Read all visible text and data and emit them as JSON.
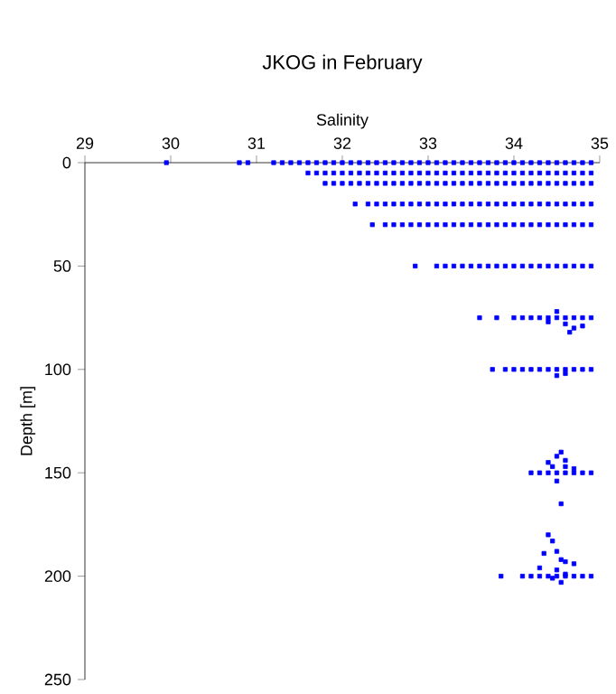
{
  "chart_data": {
    "type": "scatter",
    "title": "JKOG in February",
    "xlabel": "Salinity",
    "ylabel": "Depth [m]",
    "xlim": [
      29,
      35
    ],
    "xticks": [
      29,
      30,
      31,
      32,
      33,
      34,
      35
    ],
    "ylim": [
      250,
      0
    ],
    "yticks": [
      0,
      50,
      100,
      150,
      200,
      250
    ],
    "grid": false,
    "marker": "square",
    "series": [
      {
        "color": "#0000ff",
        "x": [
          29.95,
          30.8,
          30.9,
          31.2,
          31.3,
          31.4,
          31.5,
          31.6,
          31.7,
          31.8,
          31.9,
          32.0,
          32.1,
          32.2,
          32.3,
          32.4,
          32.5,
          32.6,
          32.7,
          32.8,
          32.9,
          33.0,
          33.1,
          33.2,
          33.3,
          33.4,
          33.5,
          33.6,
          33.7,
          33.8,
          33.9,
          34.0,
          34.1,
          34.2,
          34.3,
          34.4,
          34.5,
          34.6,
          34.7,
          34.8,
          34.9,
          31.6,
          31.7,
          31.8,
          31.9,
          32.0,
          32.1,
          32.2,
          32.3,
          32.4,
          32.5,
          32.6,
          32.7,
          32.8,
          32.9,
          33.0,
          33.1,
          33.2,
          33.3,
          33.4,
          33.5,
          33.6,
          33.7,
          33.8,
          33.9,
          34.0,
          34.1,
          34.2,
          34.3,
          34.4,
          34.5,
          34.6,
          34.7,
          34.8,
          34.9,
          31.8,
          31.9,
          32.0,
          32.1,
          32.2,
          32.3,
          32.4,
          32.5,
          32.6,
          32.7,
          32.8,
          32.9,
          33.0,
          33.1,
          33.2,
          33.3,
          33.4,
          33.5,
          33.6,
          33.7,
          33.8,
          33.9,
          34.0,
          34.1,
          34.2,
          34.3,
          34.4,
          34.5,
          34.6,
          34.7,
          34.8,
          34.9,
          32.15,
          32.3,
          32.4,
          32.5,
          32.6,
          32.7,
          32.8,
          32.9,
          33.0,
          33.1,
          33.2,
          33.3,
          33.4,
          33.5,
          33.6,
          33.7,
          33.8,
          33.9,
          34.0,
          34.1,
          34.2,
          34.3,
          34.4,
          34.5,
          34.6,
          34.7,
          34.8,
          34.9,
          32.35,
          32.5,
          32.6,
          32.7,
          32.8,
          32.9,
          33.0,
          33.1,
          33.2,
          33.3,
          33.4,
          33.5,
          33.6,
          33.7,
          33.8,
          33.9,
          34.0,
          34.1,
          34.2,
          34.3,
          34.4,
          34.5,
          34.6,
          34.7,
          34.8,
          34.9,
          32.85,
          33.1,
          33.2,
          33.3,
          33.4,
          33.5,
          33.6,
          33.7,
          33.8,
          33.9,
          34.0,
          34.1,
          34.2,
          34.3,
          34.4,
          34.5,
          34.6,
          34.7,
          34.8,
          34.9,
          33.6,
          33.8,
          34.0,
          34.1,
          34.2,
          34.3,
          34.4,
          34.5,
          34.6,
          34.7,
          34.8,
          34.9,
          34.5,
          34.6,
          34.7,
          34.4,
          34.8,
          34.65,
          33.75,
          33.9,
          34.0,
          34.1,
          34.2,
          34.3,
          34.4,
          34.5,
          34.6,
          34.7,
          34.8,
          34.9,
          34.5,
          34.6,
          34.2,
          34.3,
          34.4,
          34.5,
          34.6,
          34.7,
          34.8,
          34.9,
          34.4,
          34.5,
          34.55,
          34.6,
          34.45,
          34.6,
          34.7,
          34.5,
          34.55,
          33.85,
          34.1,
          34.2,
          34.3,
          34.4,
          34.5,
          34.6,
          34.7,
          34.8,
          34.9,
          34.4,
          34.45,
          34.35,
          34.5,
          34.55,
          34.6,
          34.7,
          34.3,
          34.5,
          34.6,
          34.45,
          34.55
        ],
        "values": [
          0,
          0,
          0,
          0,
          0,
          0,
          0,
          0,
          0,
          0,
          0,
          0,
          0,
          0,
          0,
          0,
          0,
          0,
          0,
          0,
          0,
          0,
          0,
          0,
          0,
          0,
          0,
          0,
          0,
          0,
          0,
          0,
          0,
          0,
          0,
          0,
          0,
          0,
          0,
          0,
          0,
          5,
          5,
          5,
          5,
          5,
          5,
          5,
          5,
          5,
          5,
          5,
          5,
          5,
          5,
          5,
          5,
          5,
          5,
          5,
          5,
          5,
          5,
          5,
          5,
          5,
          5,
          5,
          5,
          5,
          5,
          5,
          5,
          5,
          5,
          10,
          10,
          10,
          10,
          10,
          10,
          10,
          10,
          10,
          10,
          10,
          10,
          10,
          10,
          10,
          10,
          10,
          10,
          10,
          10,
          10,
          10,
          10,
          10,
          10,
          10,
          10,
          10,
          10,
          10,
          10,
          10,
          20,
          20,
          20,
          20,
          20,
          20,
          20,
          20,
          20,
          20,
          20,
          20,
          20,
          20,
          20,
          20,
          20,
          20,
          20,
          20,
          20,
          20,
          20,
          20,
          20,
          20,
          20,
          20,
          30,
          30,
          30,
          30,
          30,
          30,
          30,
          30,
          30,
          30,
          30,
          30,
          30,
          30,
          30,
          30,
          30,
          30,
          30,
          30,
          30,
          30,
          30,
          30,
          30,
          30,
          50,
          50,
          50,
          50,
          50,
          50,
          50,
          50,
          50,
          50,
          50,
          50,
          50,
          50,
          50,
          50,
          50,
          50,
          50,
          50,
          75,
          75,
          75,
          75,
          75,
          75,
          75,
          75,
          75,
          75,
          75,
          75,
          72,
          78,
          80,
          77,
          79,
          82,
          100,
          100,
          100,
          100,
          100,
          100,
          100,
          100,
          100,
          100,
          100,
          100,
          103,
          102,
          150,
          150,
          150,
          150,
          150,
          150,
          150,
          150,
          145,
          142,
          140,
          144,
          147,
          147,
          148,
          154,
          165,
          200,
          200,
          200,
          200,
          200,
          200,
          200,
          200,
          200,
          200,
          180,
          183,
          189,
          188,
          192,
          193,
          194,
          196,
          197,
          199,
          201,
          203
        ]
      }
    ]
  }
}
